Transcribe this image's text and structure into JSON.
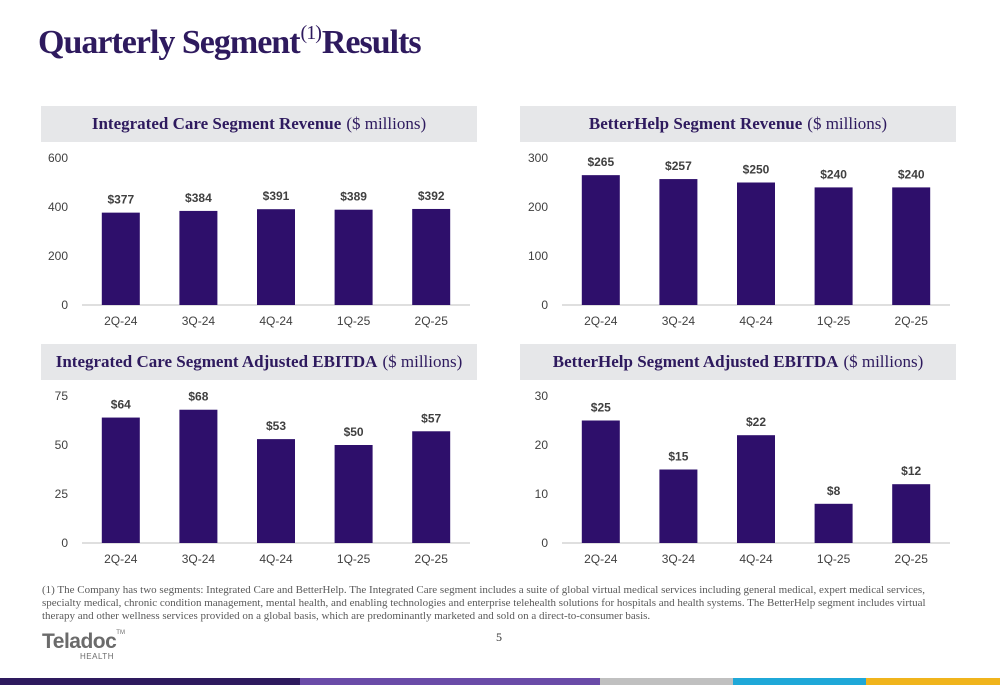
{
  "page": {
    "title_main": "Quarterly Segment",
    "title_sup": "(1)",
    "title_end": "Results",
    "footnote": "(1) The Company has two segments: Integrated Care and BetterHelp. The Integrated Care segment includes a suite of global virtual medical services including general medical, expert medical services, specialty medical, chronic condition management, mental health, and enabling technologies and enterprise telehealth solutions for hospitals and health systems. The BetterHelp segment includes virtual therapy and other wellness services provided on a global basis, which are predominantly marketed and sold on a direct-to-consumer basis.",
    "page_number": "5",
    "logo_word": "Teladoc",
    "logo_tm": "TM",
    "logo_sub": "HEALTH",
    "colors": {
      "bar": "#2e0f6b",
      "title": "#2e1a5e",
      "header_bg": "#e6e7e9",
      "stripe": [
        "#2e1a5e",
        "#6a4ba8",
        "#c0c0c0",
        "#1fa8d8",
        "#f0b41c"
      ]
    }
  },
  "chart_data": [
    {
      "type": "bar",
      "title": "Integrated Care Segment Revenue",
      "title_unit": "($ millions)",
      "categories": [
        "2Q-24",
        "3Q-24",
        "4Q-24",
        "1Q-25",
        "2Q-25"
      ],
      "values": [
        377,
        384,
        391,
        389,
        392
      ],
      "data_labels": [
        "$377",
        "$384",
        "$391",
        "$389",
        "$392"
      ],
      "yticks": [
        "0",
        "200",
        "400",
        "600"
      ],
      "ylim": [
        0,
        600
      ]
    },
    {
      "type": "bar",
      "title": "BetterHelp Segment Revenue",
      "title_unit": "($ millions)",
      "categories": [
        "2Q-24",
        "3Q-24",
        "4Q-24",
        "1Q-25",
        "2Q-25"
      ],
      "values": [
        265,
        257,
        250,
        240,
        240
      ],
      "data_labels": [
        "$265",
        "$257",
        "$250",
        "$240",
        "$240"
      ],
      "yticks": [
        "0",
        "100",
        "200",
        "300"
      ],
      "ylim": [
        0,
        300
      ]
    },
    {
      "type": "bar",
      "title": "Integrated Care Segment Adjusted EBITDA",
      "title_unit": "($ millions)",
      "categories": [
        "2Q-24",
        "3Q-24",
        "4Q-24",
        "1Q-25",
        "2Q-25"
      ],
      "values": [
        64,
        68,
        53,
        50,
        57
      ],
      "data_labels": [
        "$64",
        "$68",
        "$53",
        "$50",
        "$57"
      ],
      "yticks": [
        "0",
        "25",
        "50",
        "75"
      ],
      "ylim": [
        0,
        75
      ]
    },
    {
      "type": "bar",
      "title": "BetterHelp Segment Adjusted EBITDA",
      "title_unit": "($ millions)",
      "categories": [
        "2Q-24",
        "3Q-24",
        "4Q-24",
        "1Q-25",
        "2Q-25"
      ],
      "values": [
        25,
        15,
        22,
        8,
        12
      ],
      "data_labels": [
        "$25",
        "$15",
        "$22",
        "$8",
        "$12"
      ],
      "yticks": [
        "0",
        "10",
        "20",
        "30"
      ],
      "ylim": [
        0,
        30
      ]
    }
  ]
}
